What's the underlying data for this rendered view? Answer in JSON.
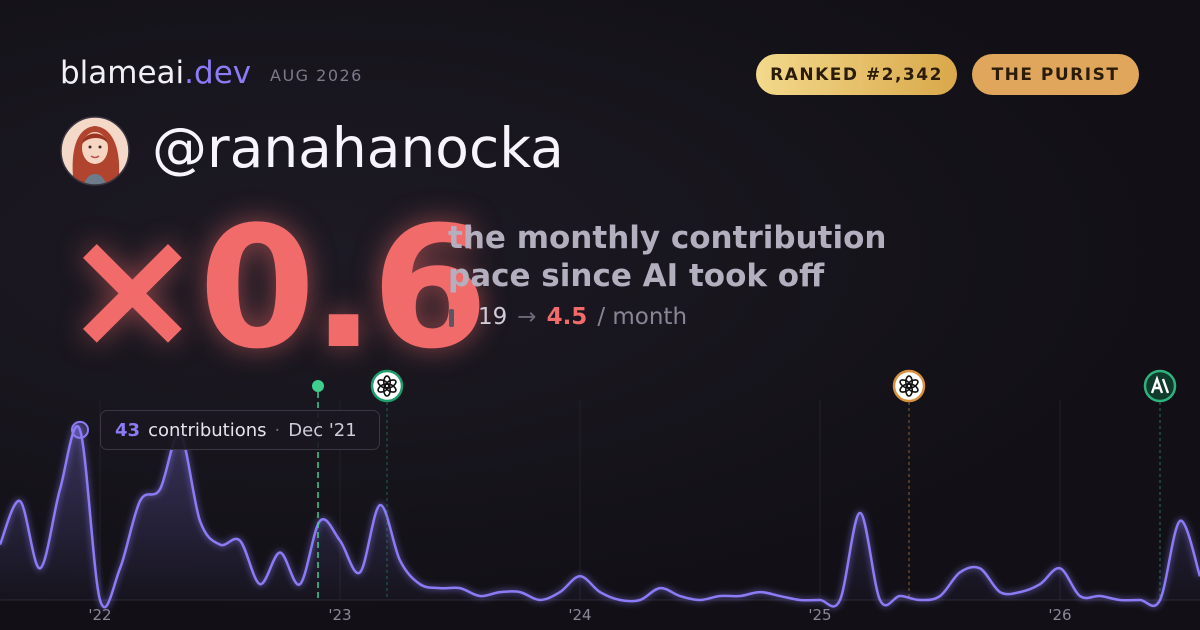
{
  "header": {
    "brand": "blameai",
    "brand_suffix": ".dev",
    "date": "AUG 2026",
    "badges": [
      "RANKED #2,342",
      "THE PURIST"
    ],
    "handle": "@ranahanocka"
  },
  "headline": {
    "multiplier": "×0.6",
    "description": [
      "the monthly contribution",
      "pace since AI took off"
    ],
    "from": "19",
    "arrow": "→",
    "to": "4.5",
    "unit": "/ month"
  },
  "tooltip": {
    "label": "contributions",
    "separator": "·",
    "date": "Dec '21"
  },
  "chart_data": {
    "type": "area",
    "categories": [
      null,
      null,
      null,
      null,
      null,
      "'22",
      null,
      null,
      null,
      null,
      null,
      null,
      null,
      null,
      null,
      null,
      null,
      "'23",
      null,
      null,
      null,
      null,
      null,
      null,
      null,
      null,
      null,
      null,
      null,
      "'24",
      null,
      null,
      null,
      null,
      null,
      null,
      null,
      null,
      null,
      null,
      null,
      "'25",
      null,
      null,
      null,
      null,
      null,
      null,
      null,
      null,
      null,
      null,
      null,
      "'26",
      null,
      null,
      null,
      null,
      null,
      null,
      null
    ],
    "series": [
      {
        "color": "#8b7cf6",
        "values": [
          14,
          25,
          8,
          28,
          43,
          0,
          8,
          25,
          28,
          42,
          20,
          14,
          15,
          4,
          12,
          4,
          20,
          15,
          7,
          24,
          10,
          4,
          3,
          3,
          1,
          2,
          2,
          0,
          2,
          6,
          2,
          0,
          0,
          3,
          1,
          0,
          1,
          1,
          2,
          1,
          0,
          0,
          0,
          22,
          0,
          1,
          0,
          1,
          7,
          8,
          2,
          2,
          4,
          8,
          1,
          1,
          0,
          0,
          0,
          20,
          6
        ]
      }
    ],
    "ylim": [
      0,
      45
    ],
    "events": [
      15.9,
      19.35,
      45.45,
      58
    ],
    "highlight": 4
  }
}
